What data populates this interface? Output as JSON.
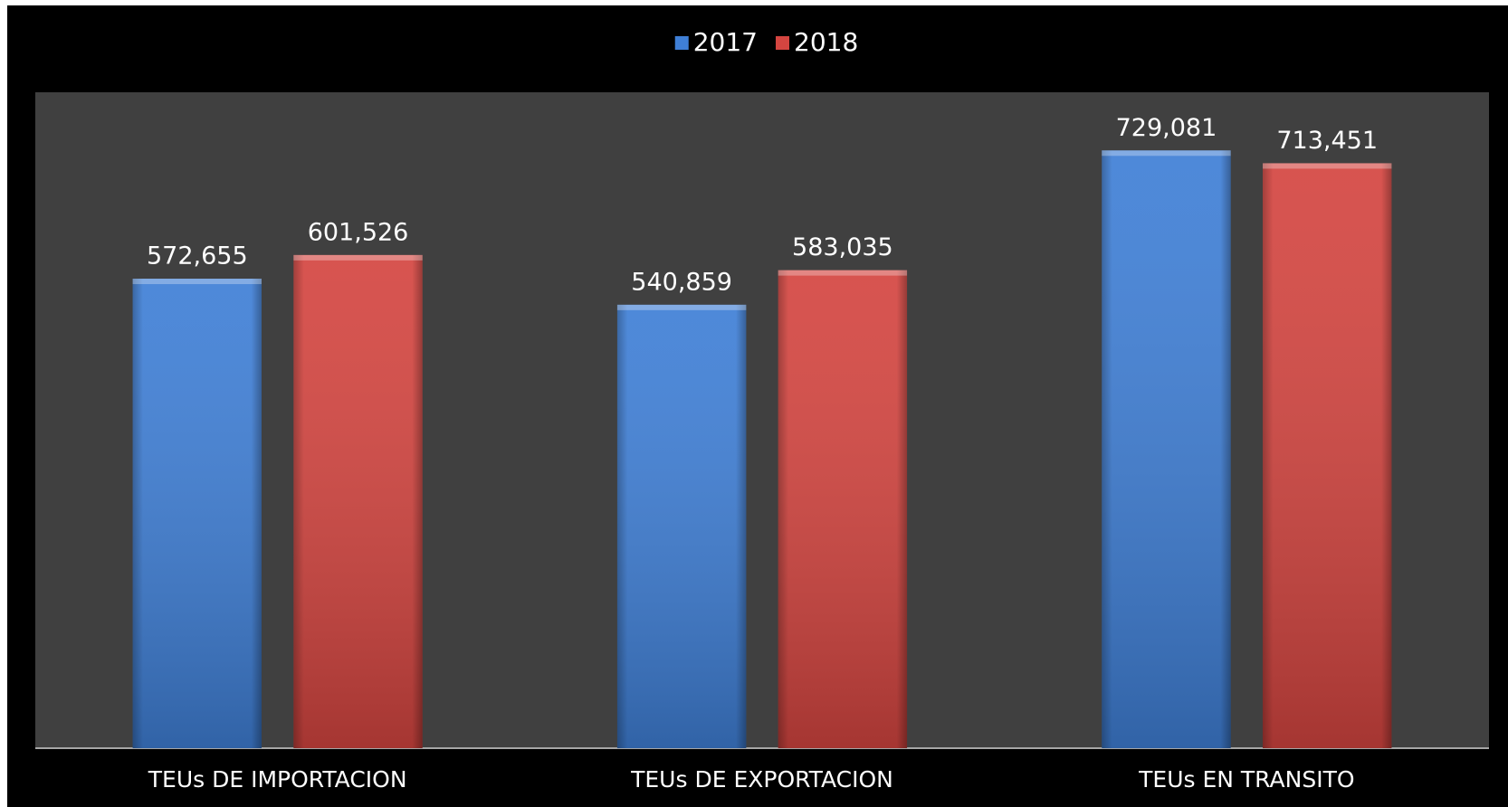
{
  "chart_data": {
    "type": "bar",
    "categories": [
      "TEUs DE IMPORTACION",
      "TEUs DE EXPORTACION",
      "TEUs EN TRANSITO"
    ],
    "series": [
      {
        "name": "2017",
        "color": "#3f7fd6",
        "values": [
          572655,
          540859,
          729081
        ],
        "value_labels": [
          "572,655",
          "540,859",
          "729,081"
        ]
      },
      {
        "name": "2018",
        "color": "#d44540",
        "values": [
          601526,
          583035,
          713451
        ],
        "value_labels": [
          "601,526",
          "583,035",
          "713,451"
        ]
      }
    ],
    "ylim": [
      0,
      800000
    ],
    "legend": "top"
  }
}
